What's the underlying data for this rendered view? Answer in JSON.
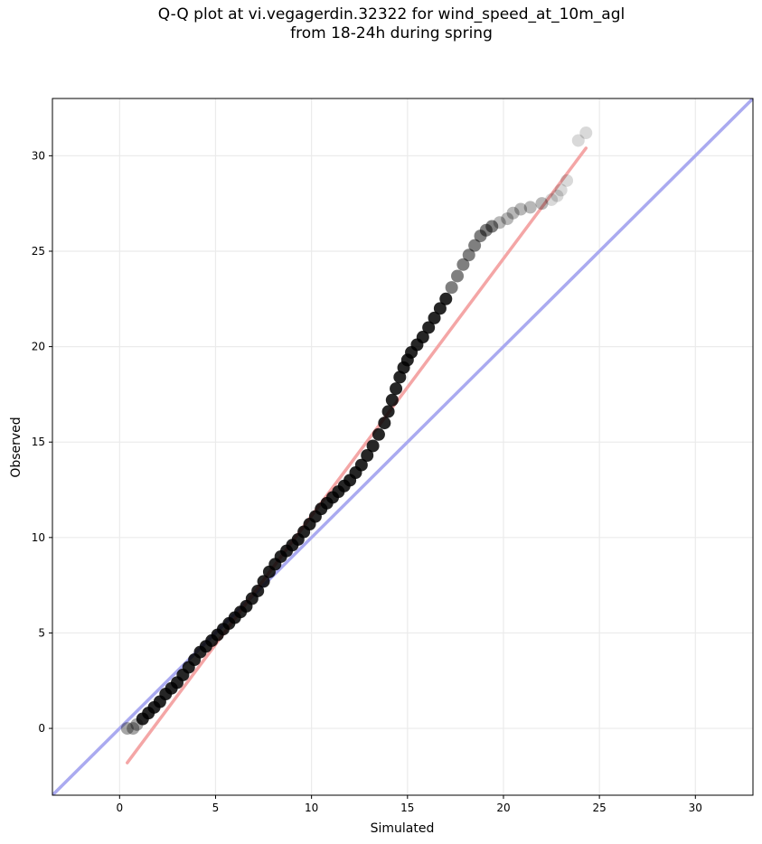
{
  "chart_data": {
    "type": "scatter",
    "title": [
      "Q-Q plot at vi.vegagerdin.32322 for wind_speed_at_10m_agl",
      "from 18-24h during spring"
    ],
    "xlabel": "Simulated",
    "ylabel": "Observed",
    "xlim": [
      -3.5,
      33
    ],
    "ylim": [
      -3.5,
      33
    ],
    "xticks": [
      0,
      5,
      10,
      15,
      20,
      25,
      30
    ],
    "yticks": [
      0,
      5,
      10,
      15,
      20,
      25,
      30
    ],
    "grid": true,
    "reference_line": {
      "kind": "y = x",
      "color": "#aaaaf0"
    },
    "fit_line": {
      "x": [
        0.4,
        24.3
      ],
      "y": [
        -1.8,
        30.4
      ],
      "color": "#f4a6a6"
    },
    "points_color": "#000000",
    "series": [
      {
        "x": [
          0.4,
          0.7,
          0.9,
          1.2,
          1.5,
          1.8,
          2.1,
          2.4,
          2.7,
          3.0,
          3.3,
          3.6,
          3.9,
          4.2,
          4.5,
          4.8,
          5.1,
          5.4,
          5.7,
          6.0,
          6.3,
          6.6,
          6.9,
          7.2,
          7.5,
          7.8,
          8.1,
          8.4,
          8.7,
          9.0,
          9.3,
          9.6,
          9.9,
          10.2,
          10.5,
          10.8,
          11.1,
          11.4,
          11.7,
          12.0,
          12.3,
          12.6,
          12.9,
          13.2,
          13.5,
          13.8,
          14.0,
          14.2,
          14.4,
          14.6,
          14.8,
          15.0,
          15.2,
          15.5,
          15.8,
          16.1,
          16.4,
          16.7,
          17.0,
          17.3,
          17.6,
          17.9,
          18.2,
          18.5,
          18.8,
          19.1,
          19.4,
          19.8,
          20.2,
          20.5,
          20.9,
          21.4,
          22.0,
          22.5,
          22.8,
          23.0,
          23.3,
          23.9,
          24.3
        ],
        "y": [
          0.0,
          0.0,
          0.2,
          0.5,
          0.8,
          1.1,
          1.4,
          1.8,
          2.1,
          2.4,
          2.8,
          3.2,
          3.6,
          4.0,
          4.3,
          4.6,
          4.9,
          5.2,
          5.5,
          5.8,
          6.1,
          6.4,
          6.8,
          7.2,
          7.7,
          8.2,
          8.6,
          9.0,
          9.3,
          9.6,
          9.9,
          10.3,
          10.7,
          11.1,
          11.5,
          11.8,
          12.1,
          12.4,
          12.7,
          13.0,
          13.4,
          13.8,
          14.3,
          14.8,
          15.4,
          16.0,
          16.6,
          17.2,
          17.8,
          18.4,
          18.9,
          19.3,
          19.7,
          20.1,
          20.5,
          21.0,
          21.5,
          22.0,
          22.5,
          23.1,
          23.7,
          24.3,
          24.8,
          25.3,
          25.8,
          26.1,
          26.3,
          26.5,
          26.7,
          27.0,
          27.2,
          27.3,
          27.5,
          27.7,
          27.9,
          28.2,
          28.7,
          30.8,
          31.2
        ]
      }
    ]
  }
}
